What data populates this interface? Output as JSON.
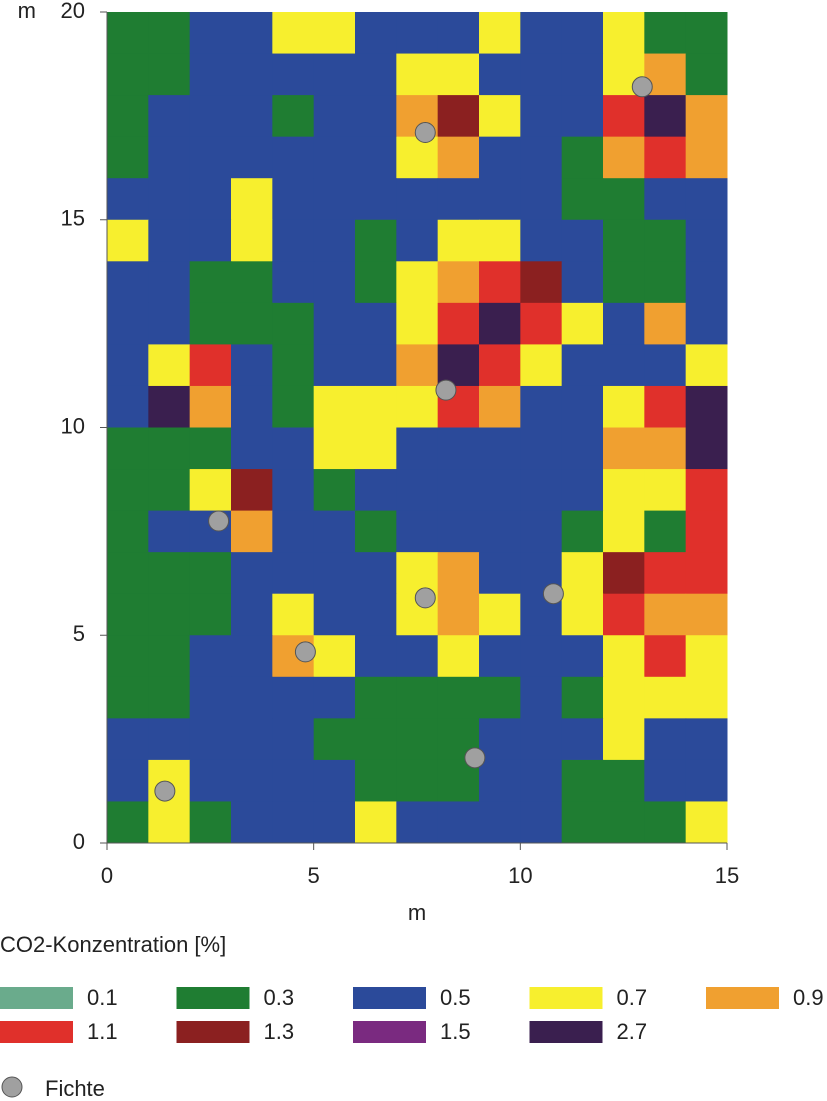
{
  "chart_data": {
    "type": "heatmap",
    "xlabel": "m",
    "ylabel": "m",
    "xlim": [
      0,
      15
    ],
    "ylim": [
      0,
      20
    ],
    "xticks": [
      0,
      5,
      10,
      15
    ],
    "yticks": [
      0,
      5,
      10,
      15,
      20
    ],
    "legend_title": "CO2-Konzentration [%]",
    "classes": [
      {
        "value": 0.1,
        "color": "#6aab8c"
      },
      {
        "value": 0.3,
        "color": "#1f7d32"
      },
      {
        "value": 0.5,
        "color": "#2b4a9a"
      },
      {
        "value": 0.7,
        "color": "#f7ef2e"
      },
      {
        "value": 0.9,
        "color": "#f0a030"
      },
      {
        "value": 1.1,
        "color": "#e0302b"
      },
      {
        "value": 1.3,
        "color": "#8b2020"
      },
      {
        "value": 1.5,
        "color": "#7a2a80"
      },
      {
        "value": 2.7,
        "color": "#3a1f4f"
      }
    ],
    "z": [
      [
        0.3,
        0.3,
        0.5,
        0.5,
        0.7,
        0.7,
        0.5,
        0.5,
        0.5,
        0.7,
        0.5,
        0.5,
        0.7,
        0.3,
        0.3
      ],
      [
        0.3,
        0.3,
        0.5,
        0.5,
        0.5,
        0.5,
        0.5,
        0.7,
        0.7,
        0.5,
        0.5,
        0.5,
        0.7,
        0.9,
        0.3
      ],
      [
        0.3,
        0.5,
        0.5,
        0.5,
        0.3,
        0.5,
        0.5,
        0.9,
        1.3,
        0.7,
        0.5,
        0.5,
        1.1,
        2.7,
        0.9
      ],
      [
        0.3,
        0.5,
        0.5,
        0.5,
        0.5,
        0.5,
        0.5,
        0.7,
        0.9,
        0.5,
        0.5,
        0.3,
        0.9,
        1.1,
        0.9
      ],
      [
        0.5,
        0.5,
        0.5,
        0.7,
        0.5,
        0.5,
        0.5,
        0.5,
        0.5,
        0.5,
        0.5,
        0.3,
        0.3,
        0.5,
        0.5
      ],
      [
        0.7,
        0.5,
        0.5,
        0.7,
        0.5,
        0.5,
        0.3,
        0.5,
        0.7,
        0.7,
        0.5,
        0.5,
        0.3,
        0.3,
        0.5
      ],
      [
        0.5,
        0.5,
        0.3,
        0.3,
        0.5,
        0.5,
        0.3,
        0.7,
        0.9,
        1.1,
        1.3,
        0.5,
        0.3,
        0.3,
        0.5
      ],
      [
        0.5,
        0.5,
        0.3,
        0.3,
        0.3,
        0.5,
        0.5,
        0.7,
        1.1,
        2.7,
        1.1,
        0.7,
        0.5,
        0.9,
        0.5
      ],
      [
        0.5,
        0.7,
        1.1,
        0.5,
        0.3,
        0.5,
        0.5,
        0.9,
        2.7,
        1.1,
        0.7,
        0.5,
        0.5,
        0.5,
        0.7
      ],
      [
        0.5,
        2.7,
        0.9,
        0.5,
        0.3,
        0.7,
        0.7,
        0.7,
        1.1,
        0.9,
        0.5,
        0.5,
        0.7,
        1.1,
        2.7
      ],
      [
        0.3,
        0.3,
        0.3,
        0.5,
        0.5,
        0.7,
        0.7,
        0.5,
        0.5,
        0.5,
        0.5,
        0.5,
        0.9,
        0.9,
        2.7
      ],
      [
        0.3,
        0.3,
        0.7,
        1.3,
        0.5,
        0.3,
        0.5,
        0.5,
        0.5,
        0.5,
        0.5,
        0.5,
        0.7,
        0.7,
        1.1
      ],
      [
        0.3,
        0.5,
        0.5,
        0.9,
        0.5,
        0.5,
        0.3,
        0.5,
        0.5,
        0.5,
        0.5,
        0.3,
        0.7,
        0.3,
        1.1
      ],
      [
        0.3,
        0.3,
        0.3,
        0.5,
        0.5,
        0.5,
        0.5,
        0.7,
        0.9,
        0.5,
        0.5,
        0.7,
        1.3,
        1.1,
        1.1
      ],
      [
        0.3,
        0.3,
        0.3,
        0.5,
        0.7,
        0.5,
        0.5,
        0.7,
        0.9,
        0.7,
        0.5,
        0.7,
        1.1,
        0.9,
        0.9
      ],
      [
        0.3,
        0.3,
        0.5,
        0.5,
        0.9,
        0.7,
        0.5,
        0.5,
        0.7,
        0.5,
        0.5,
        0.5,
        0.7,
        1.1,
        0.7
      ],
      [
        0.3,
        0.3,
        0.5,
        0.5,
        0.5,
        0.5,
        0.3,
        0.3,
        0.3,
        0.3,
        0.5,
        0.3,
        0.7,
        0.7,
        0.7
      ],
      [
        0.5,
        0.5,
        0.5,
        0.5,
        0.5,
        0.3,
        0.3,
        0.3,
        0.3,
        0.5,
        0.5,
        0.5,
        0.7,
        0.5,
        0.5
      ],
      [
        0.5,
        0.7,
        0.5,
        0.5,
        0.5,
        0.5,
        0.3,
        0.3,
        0.3,
        0.5,
        0.5,
        0.3,
        0.3,
        0.5,
        0.5
      ],
      [
        0.3,
        0.7,
        0.3,
        0.5,
        0.5,
        0.5,
        0.7,
        0.5,
        0.5,
        0.5,
        0.5,
        0.3,
        0.3,
        0.3,
        0.7
      ]
    ],
    "points": {
      "name": "Fichte",
      "color": "#a0a0a0",
      "x": [
        1.4,
        2.7,
        4.8,
        7.7,
        8.9,
        10.8,
        8.2,
        7.7,
        12.95
      ],
      "y": [
        1.25,
        7.75,
        4.6,
        5.9,
        2.05,
        6.0,
        10.9,
        17.1,
        18.2
      ]
    }
  }
}
